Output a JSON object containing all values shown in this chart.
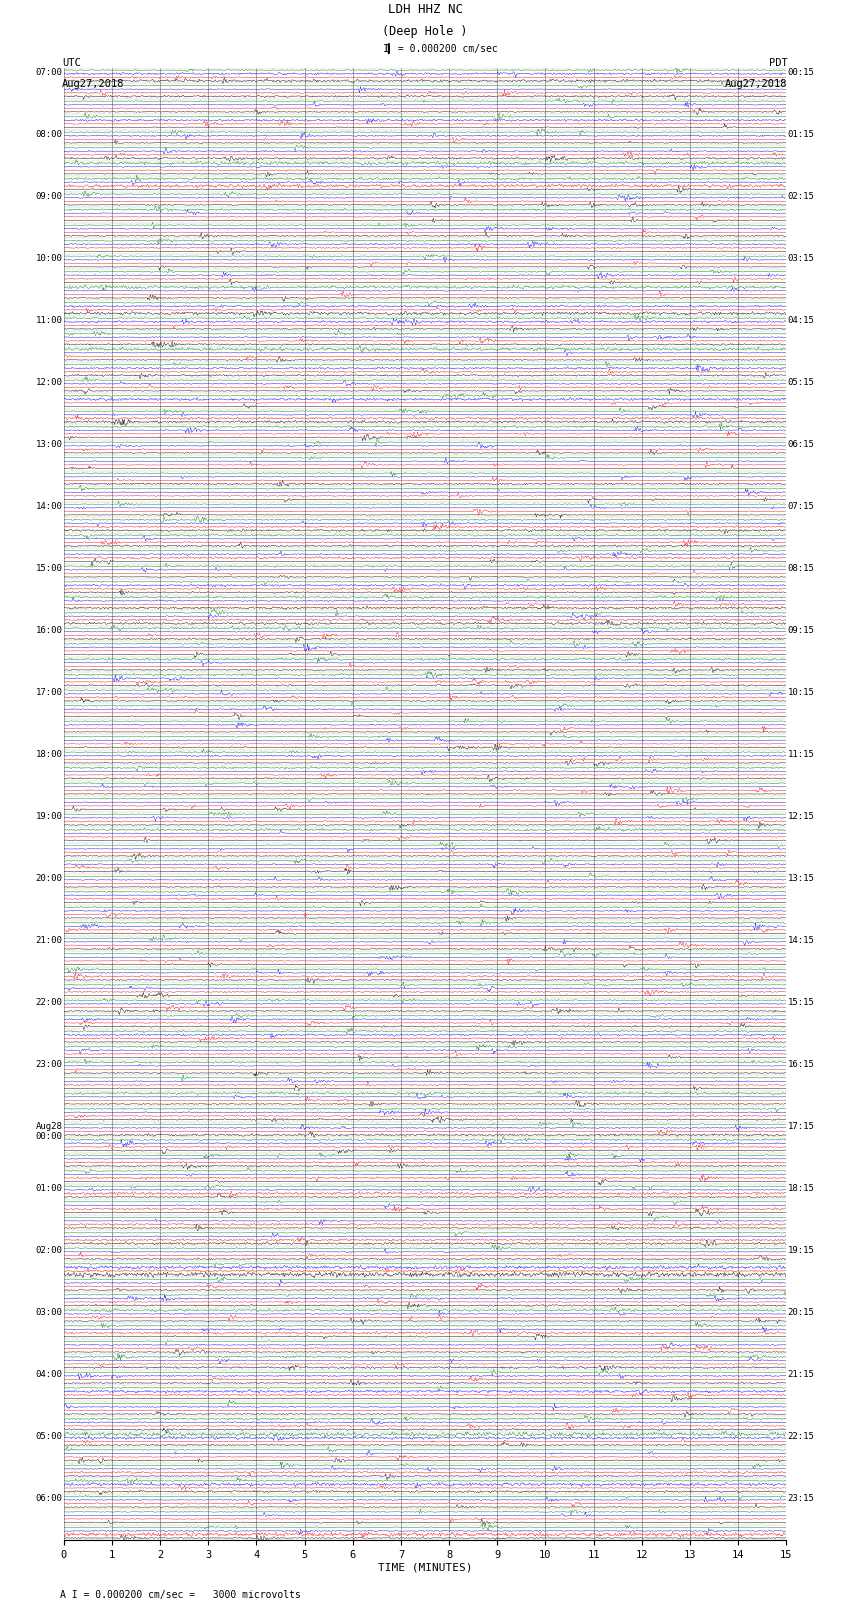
{
  "title_line1": "LDH HHZ NC",
  "title_line2": "(Deep Hole )",
  "scale_label": "I = 0.000200 cm/sec",
  "footer_label": "A I = 0.000200 cm/sec =   3000 microvolts",
  "utc_label": "UTC",
  "utc_date": "Aug27,2018",
  "pdt_label": "PDT",
  "pdt_date": "Aug27,2018",
  "xlabel": "TIME (MINUTES)",
  "background_color": "#ffffff",
  "trace_colors": [
    "black",
    "red",
    "blue",
    "green"
  ],
  "left_times": [
    "07:00",
    "",
    "",
    "",
    "08:00",
    "",
    "",
    "",
    "09:00",
    "",
    "",
    "",
    "10:00",
    "",
    "",
    "",
    "11:00",
    "",
    "",
    "",
    "12:00",
    "",
    "",
    "",
    "13:00",
    "",
    "",
    "",
    "14:00",
    "",
    "",
    "",
    "15:00",
    "",
    "",
    "",
    "16:00",
    "",
    "",
    "",
    "17:00",
    "",
    "",
    "",
    "18:00",
    "",
    "",
    "",
    "19:00",
    "",
    "",
    "",
    "20:00",
    "",
    "",
    "",
    "21:00",
    "",
    "",
    "",
    "22:00",
    "",
    "",
    "",
    "23:00",
    "",
    "",
    "",
    "Aug28\n00:00",
    "",
    "",
    "",
    "01:00",
    "",
    "",
    "",
    "02:00",
    "",
    "",
    "",
    "03:00",
    "",
    "",
    "",
    "04:00",
    "",
    "",
    "",
    "05:00",
    "",
    "",
    "",
    "06:00",
    "",
    ""
  ],
  "right_times": [
    "00:15",
    "",
    "",
    "",
    "01:15",
    "",
    "",
    "",
    "02:15",
    "",
    "",
    "",
    "03:15",
    "",
    "",
    "",
    "04:15",
    "",
    "",
    "",
    "05:15",
    "",
    "",
    "",
    "06:15",
    "",
    "",
    "",
    "07:15",
    "",
    "",
    "",
    "08:15",
    "",
    "",
    "",
    "09:15",
    "",
    "",
    "",
    "10:15",
    "",
    "",
    "",
    "11:15",
    "",
    "",
    "",
    "12:15",
    "",
    "",
    "",
    "13:15",
    "",
    "",
    "",
    "14:15",
    "",
    "",
    "",
    "15:15",
    "",
    "",
    "",
    "16:15",
    "",
    "",
    "",
    "17:15",
    "",
    "",
    "",
    "18:15",
    "",
    "",
    "",
    "19:15",
    "",
    "",
    "",
    "20:15",
    "",
    "",
    "",
    "21:15",
    "",
    "",
    "",
    "22:15",
    "",
    "",
    "",
    "23:15",
    "",
    ""
  ],
  "xmin": 0,
  "xmax": 15,
  "xticks": [
    0,
    1,
    2,
    3,
    4,
    5,
    6,
    7,
    8,
    9,
    10,
    11,
    12,
    13,
    14,
    15
  ],
  "num_rows": 95,
  "traces_per_row": 4,
  "noise_seed": 42
}
